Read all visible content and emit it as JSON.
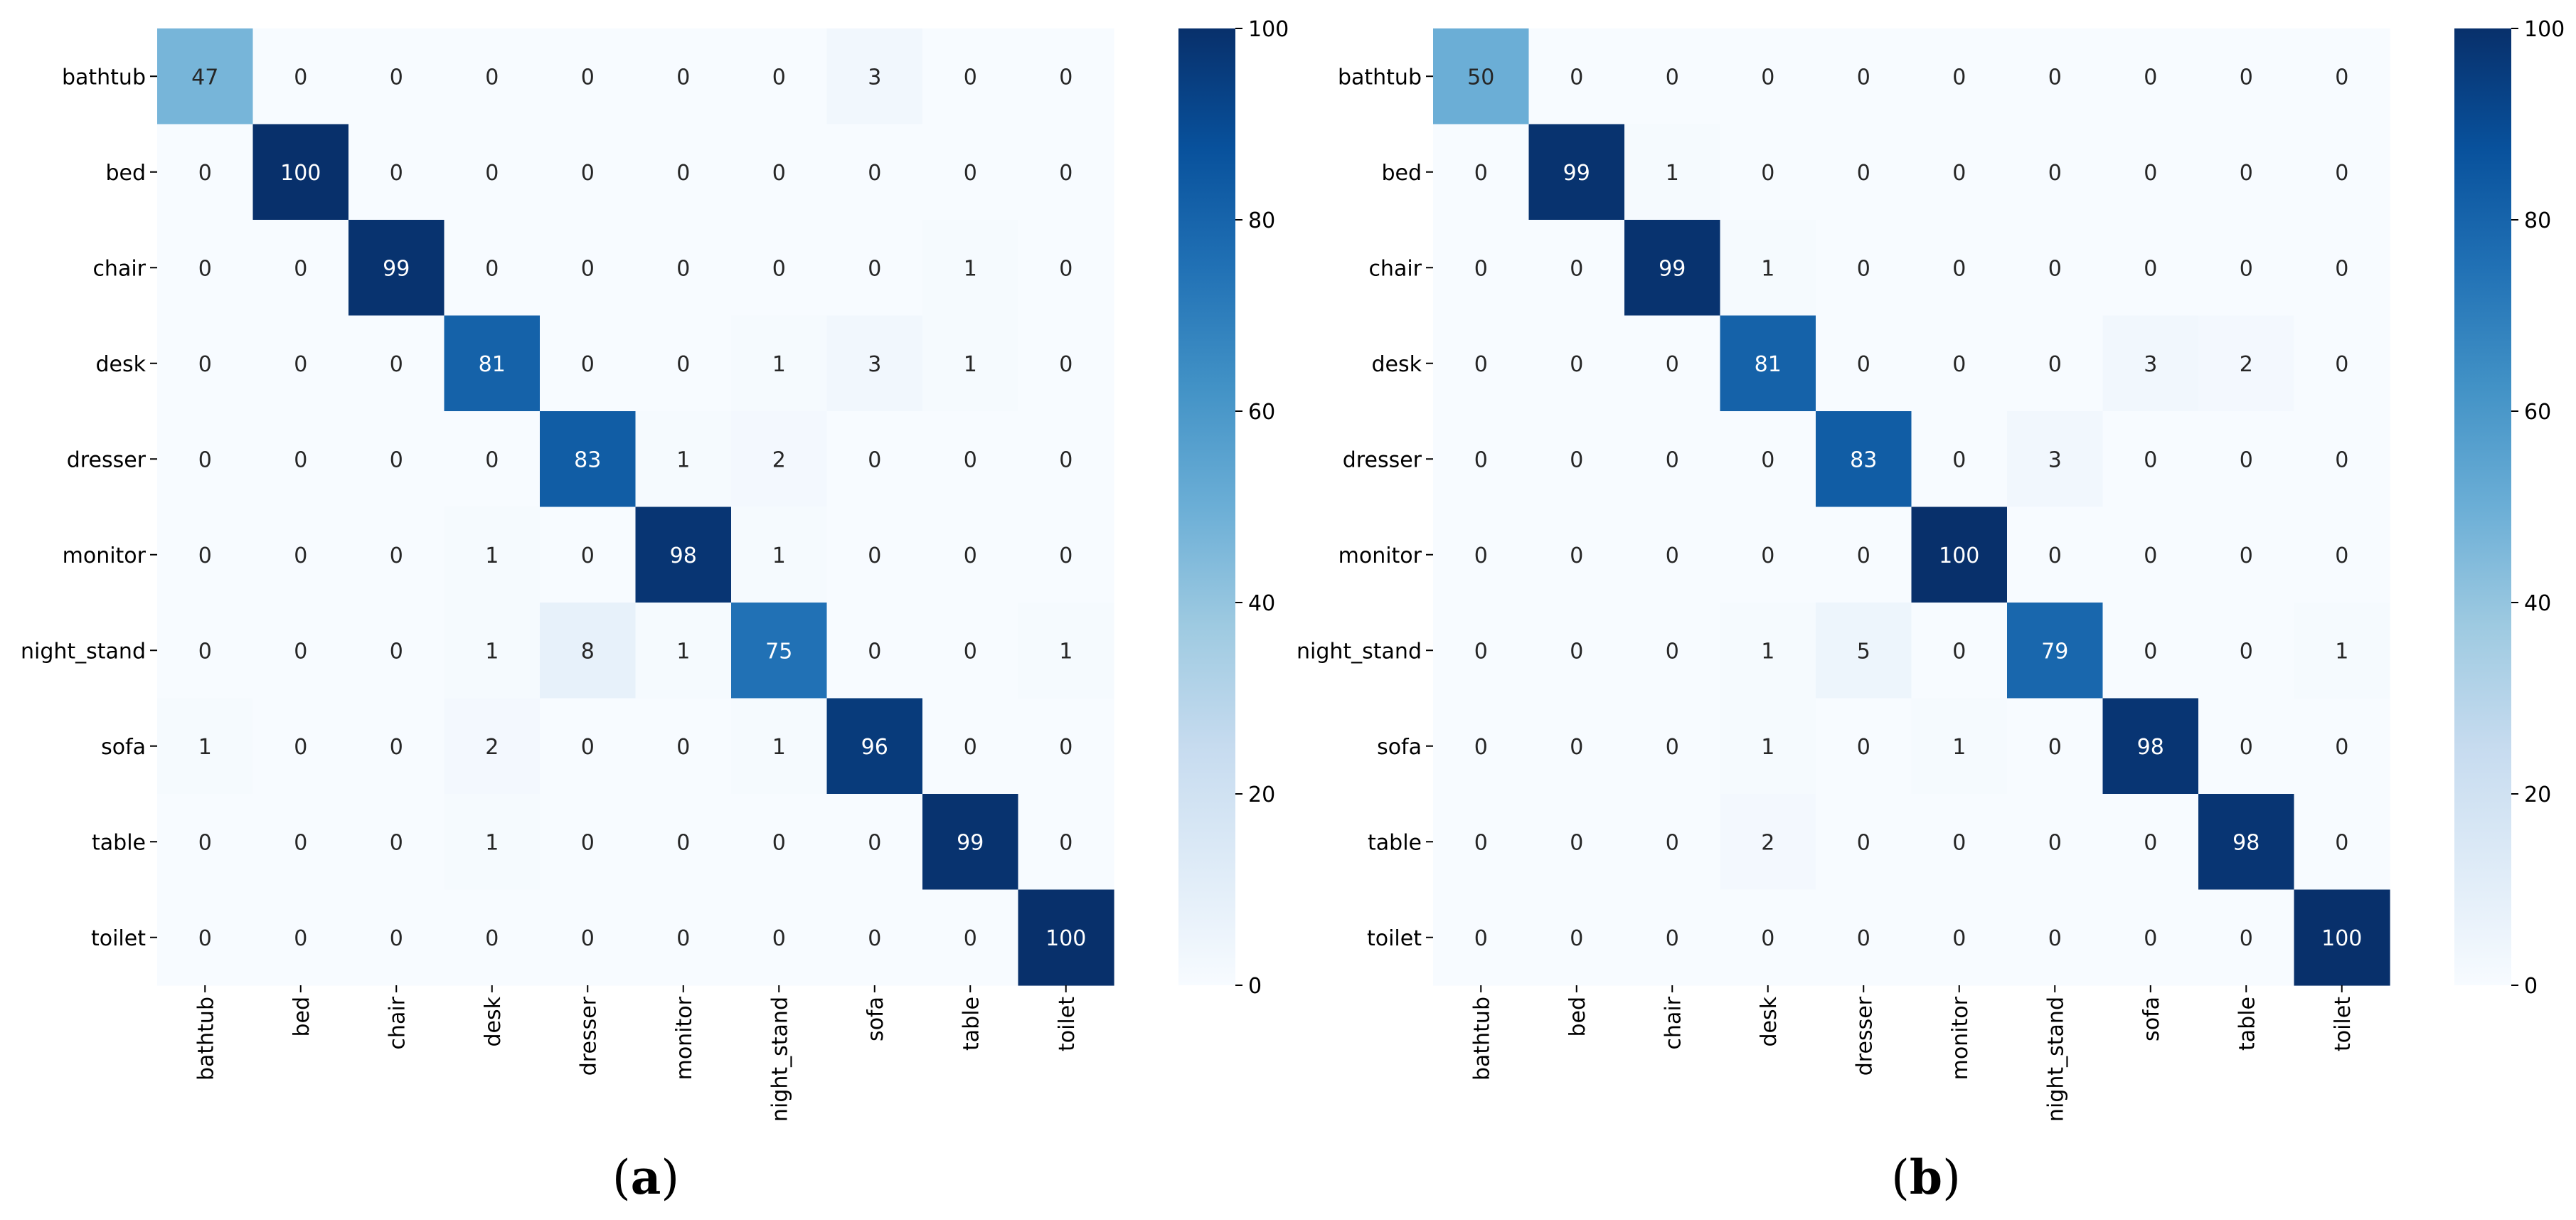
{
  "chart_data": [
    {
      "type": "heatmap",
      "panel_label": "a",
      "row_labels": [
        "bathtub",
        "bed",
        "chair",
        "desk",
        "dresser",
        "monitor",
        "night_stand",
        "sofa",
        "table",
        "toilet"
      ],
      "col_labels": [
        "bathtub",
        "bed",
        "chair",
        "desk",
        "dresser",
        "monitor",
        "night_stand",
        "sofa",
        "table",
        "toilet"
      ],
      "matrix": [
        [
          47,
          0,
          0,
          0,
          0,
          0,
          0,
          3,
          0,
          0
        ],
        [
          0,
          100,
          0,
          0,
          0,
          0,
          0,
          0,
          0,
          0
        ],
        [
          0,
          0,
          99,
          0,
          0,
          0,
          0,
          0,
          1,
          0
        ],
        [
          0,
          0,
          0,
          81,
          0,
          0,
          1,
          3,
          1,
          0
        ],
        [
          0,
          0,
          0,
          0,
          83,
          1,
          2,
          0,
          0,
          0
        ],
        [
          0,
          0,
          0,
          1,
          0,
          98,
          1,
          0,
          0,
          0
        ],
        [
          0,
          0,
          0,
          1,
          8,
          1,
          75,
          0,
          0,
          1
        ],
        [
          1,
          0,
          0,
          2,
          0,
          0,
          1,
          96,
          0,
          0
        ],
        [
          0,
          0,
          0,
          1,
          0,
          0,
          0,
          0,
          99,
          0
        ],
        [
          0,
          0,
          0,
          0,
          0,
          0,
          0,
          0,
          0,
          100
        ]
      ],
      "colorbar": {
        "min": 0,
        "max": 100,
        "ticks": [
          "0",
          "20",
          "40",
          "60",
          "80",
          "100"
        ]
      },
      "colormap": "Blues"
    },
    {
      "type": "heatmap",
      "panel_label": "b",
      "row_labels": [
        "bathtub",
        "bed",
        "chair",
        "desk",
        "dresser",
        "monitor",
        "night_stand",
        "sofa",
        "table",
        "toilet"
      ],
      "col_labels": [
        "bathtub",
        "bed",
        "chair",
        "desk",
        "dresser",
        "monitor",
        "night_stand",
        "sofa",
        "table",
        "toilet"
      ],
      "matrix": [
        [
          50,
          0,
          0,
          0,
          0,
          0,
          0,
          0,
          0,
          0
        ],
        [
          0,
          99,
          1,
          0,
          0,
          0,
          0,
          0,
          0,
          0
        ],
        [
          0,
          0,
          99,
          1,
          0,
          0,
          0,
          0,
          0,
          0
        ],
        [
          0,
          0,
          0,
          81,
          0,
          0,
          0,
          3,
          2,
          0
        ],
        [
          0,
          0,
          0,
          0,
          83,
          0,
          3,
          0,
          0,
          0
        ],
        [
          0,
          0,
          0,
          0,
          0,
          100,
          0,
          0,
          0,
          0
        ],
        [
          0,
          0,
          0,
          1,
          5,
          0,
          79,
          0,
          0,
          1
        ],
        [
          0,
          0,
          0,
          1,
          0,
          1,
          0,
          98,
          0,
          0
        ],
        [
          0,
          0,
          0,
          2,
          0,
          0,
          0,
          0,
          98,
          0
        ],
        [
          0,
          0,
          0,
          0,
          0,
          0,
          0,
          0,
          0,
          100
        ]
      ],
      "colorbar": {
        "min": 0,
        "max": 100,
        "ticks": [
          "0",
          "20",
          "40",
          "60",
          "80",
          "100"
        ]
      },
      "colormap": "Blues"
    }
  ]
}
